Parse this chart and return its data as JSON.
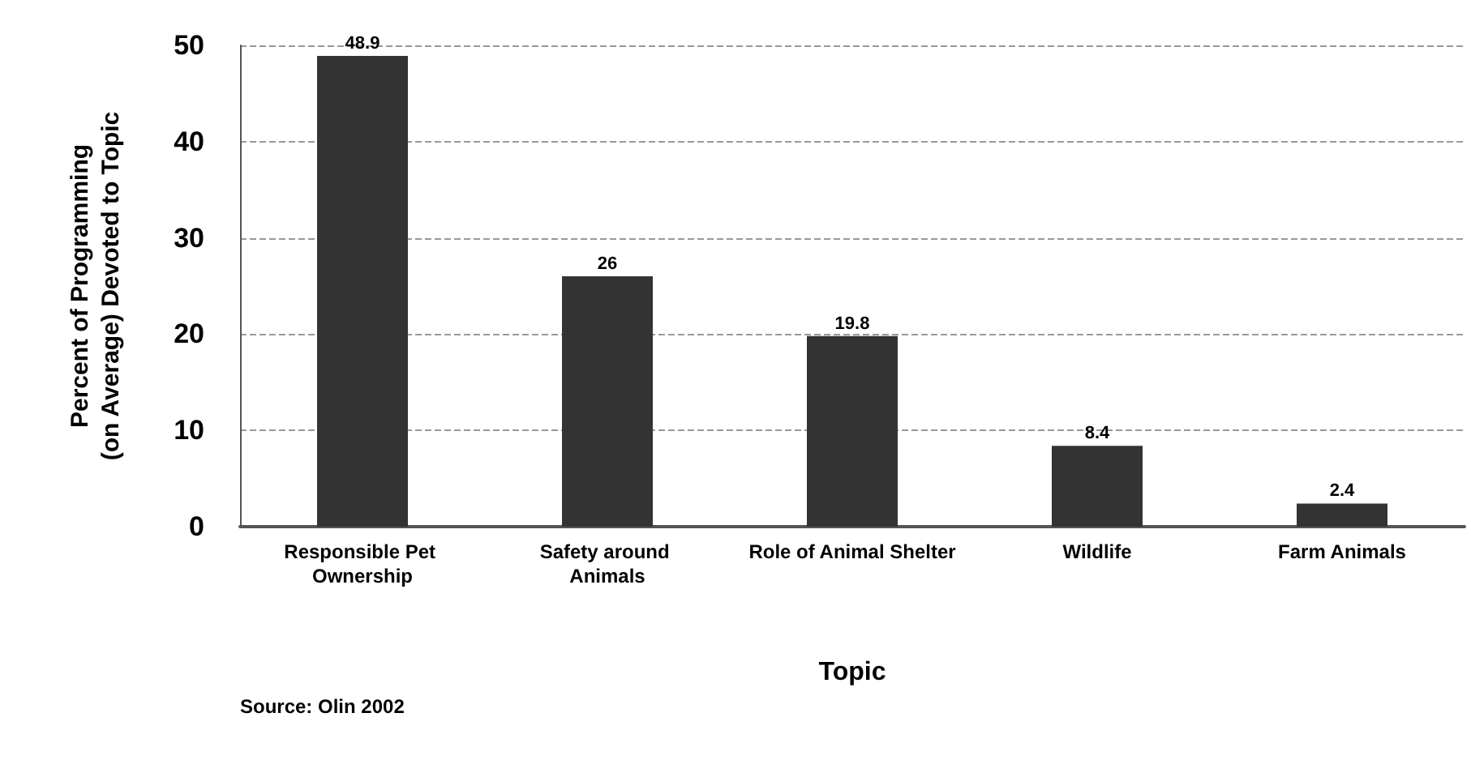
{
  "chart_data": {
    "type": "bar",
    "categories": [
      "Responsible Pet Ownership",
      "Safety around Animals",
      "Role of Animal Shelter",
      "Wildlife",
      "Farm Animals"
    ],
    "values": [
      48.9,
      26,
      19.8,
      8.4,
      2.4
    ],
    "color": "#333333",
    "data_labels": true,
    "xlabel": "Topic",
    "ylabel": "Percent of Programming\n(on Average) Devoted to Topic",
    "ylim": [
      0,
      50
    ],
    "yticks": [
      0,
      10,
      20,
      30,
      40,
      50
    ],
    "grid": "y",
    "annotations": [
      "Source: Olin 2002"
    ]
  }
}
